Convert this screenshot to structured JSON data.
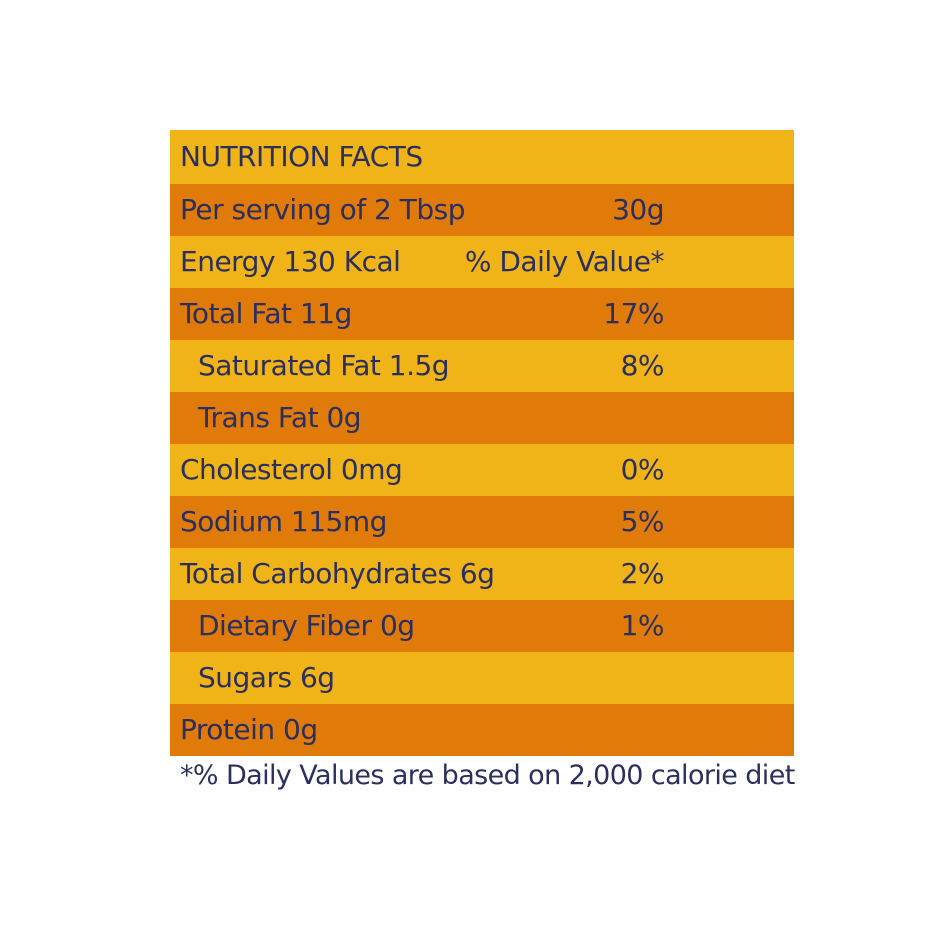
{
  "panel": {
    "title": "NUTRITION FACTS",
    "rows": [
      {
        "label": "Per serving of 2 Tbsp",
        "value": "30g"
      },
      {
        "label": "Energy 130 Kcal",
        "value": "% Daily Value*"
      },
      {
        "label": "Total Fat 11g",
        "value": "17%"
      },
      {
        "label": "Saturated Fat 1.5g",
        "value": "8%"
      },
      {
        "label": "Trans Fat 0g",
        "value": ""
      },
      {
        "label": "Cholesterol 0mg",
        "value": "0%"
      },
      {
        "label": "Sodium 115mg",
        "value": "5%"
      },
      {
        "label": "Total Carbohydrates 6g",
        "value": "2%"
      },
      {
        "label": "Dietary Fiber 0g",
        "value": "1%"
      },
      {
        "label": "Sugars 6g",
        "value": ""
      },
      {
        "label": "Protein 0g",
        "value": ""
      }
    ]
  },
  "footnote": "*% Daily Values are based on 2,000 calorie diet",
  "colors": {
    "light_band": "#f0b418",
    "dark_band": "#e07b0a",
    "text": "#2b2f5e"
  }
}
